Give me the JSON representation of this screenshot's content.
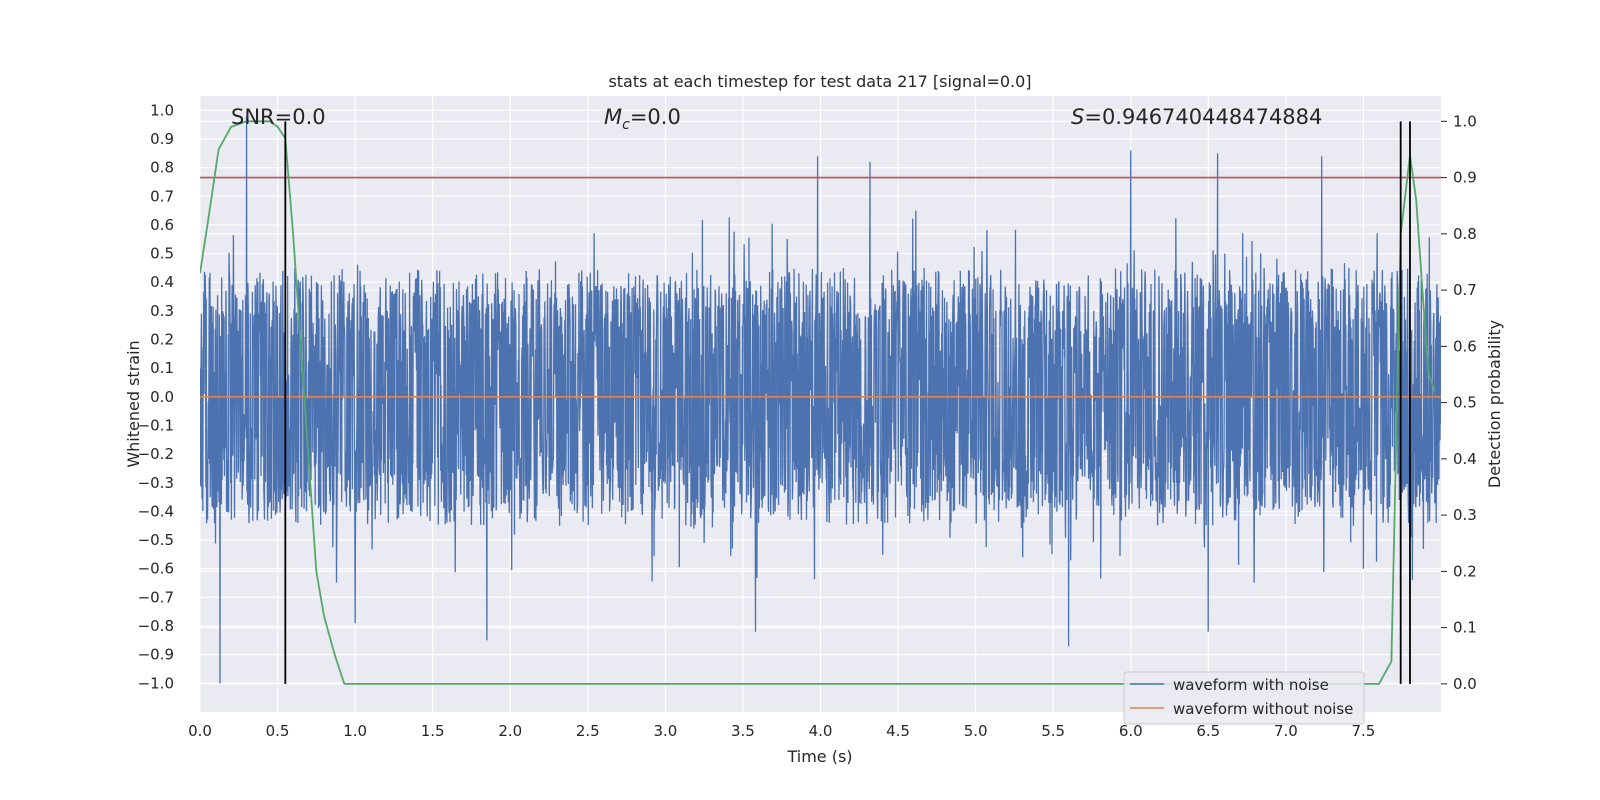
{
  "chart_data": {
    "type": "line",
    "title": "stats at each timestep for test data 217 [signal=0.0]",
    "xlabel": "Time (s)",
    "ylabel": "Whitened strain",
    "y2label": "Detection probability",
    "xlim": [
      0.0,
      8.0
    ],
    "ylim": [
      -1.1,
      1.05
    ],
    "y2lim": [
      -0.05,
      1.045
    ],
    "x_ticks": [
      0.0,
      0.5,
      1.0,
      1.5,
      2.0,
      2.5,
      3.0,
      3.5,
      4.0,
      4.5,
      5.0,
      5.5,
      6.0,
      6.5,
      7.0,
      7.5
    ],
    "x_tick_labels": [
      "0.0",
      "0.5",
      "1.0",
      "1.5",
      "2.0",
      "2.5",
      "3.0",
      "3.5",
      "4.0",
      "4.5",
      "5.0",
      "5.5",
      "6.0",
      "6.5",
      "7.0",
      "7.5"
    ],
    "y_ticks": [
      1.0,
      0.9,
      0.8,
      0.7,
      0.6,
      0.5,
      0.4,
      0.3,
      0.2,
      0.1,
      0.0,
      -0.1,
      -0.2,
      -0.3,
      -0.4,
      -0.5,
      -0.6,
      -0.7,
      -0.8,
      -0.9,
      -1.0
    ],
    "y_tick_labels": [
      "1.0",
      "0.9",
      "0.8",
      "0.7",
      "0.6",
      "0.5",
      "0.4",
      "0.3",
      "0.2",
      "0.1",
      "0.0",
      "−0.1",
      "−0.2",
      "−0.3",
      "−0.4",
      "−0.5",
      "−0.6",
      "−0.7",
      "−0.8",
      "−0.9",
      "−1.0"
    ],
    "y2_ticks": [
      1.0,
      0.9,
      0.8,
      0.7,
      0.6,
      0.5,
      0.4,
      0.3,
      0.2,
      0.1,
      0.0
    ],
    "y2_tick_labels": [
      "1.0",
      "0.9",
      "0.8",
      "0.7",
      "0.6",
      "0.5",
      "0.4",
      "0.3",
      "0.2",
      "0.1",
      "0.0"
    ],
    "grid": true,
    "series": [
      {
        "name": "waveform with noise",
        "color": "#4c72b0",
        "kind": "noise",
        "axis": "left",
        "typical_range": [
          -0.45,
          0.45
        ],
        "peaks": [
          {
            "x": 0.3,
            "y": 0.98
          },
          {
            "x": 3.98,
            "y": 0.84
          },
          {
            "x": 4.32,
            "y": 0.82
          },
          {
            "x": 6.0,
            "y": 0.86
          },
          {
            "x": 6.56,
            "y": 0.85
          },
          {
            "x": 7.23,
            "y": 0.84
          },
          {
            "x": 0.13,
            "y": -1.0
          },
          {
            "x": 1.0,
            "y": -0.79
          },
          {
            "x": 1.85,
            "y": -0.85
          },
          {
            "x": 3.58,
            "y": -0.82
          },
          {
            "x": 5.6,
            "y": -0.87
          },
          {
            "x": 6.5,
            "y": -0.82
          },
          {
            "x": 7.5,
            "y": -0.6
          }
        ]
      },
      {
        "name": "waveform without noise",
        "color": "#dd8452",
        "axis": "left",
        "x": [
          0.0,
          8.0
        ],
        "y": [
          0.0,
          0.0
        ]
      },
      {
        "name": "detection probability",
        "color": "#55a868",
        "axis": "right",
        "x": [
          0.0,
          0.05,
          0.12,
          0.2,
          0.3,
          0.45,
          0.5,
          0.55,
          0.6,
          0.65,
          0.7,
          0.75,
          0.8,
          0.87,
          0.93,
          1.0,
          2.0,
          3.0,
          3.4,
          3.6,
          4.0,
          5.0,
          6.0,
          7.0,
          7.5,
          7.6,
          7.68,
          7.74,
          7.8,
          7.84,
          7.88,
          7.92,
          7.96
        ],
        "y": [
          0.73,
          0.82,
          0.95,
          0.99,
          1.0,
          1.0,
          0.99,
          0.97,
          0.8,
          0.6,
          0.4,
          0.2,
          0.12,
          0.05,
          0.0,
          0.0,
          0.0,
          0.0,
          0.0,
          0.0,
          0.0,
          0.0,
          0.0,
          0.0,
          0.0,
          0.0,
          0.04,
          0.8,
          0.94,
          0.86,
          0.7,
          0.55,
          0.52
        ]
      }
    ],
    "hlines": [
      {
        "axis": "right",
        "y": 0.9,
        "color": "#c44e52"
      }
    ],
    "vlines": [
      {
        "x": 0.55,
        "color": "#000000"
      },
      {
        "x": 7.74,
        "color": "#000000"
      },
      {
        "x": 7.8,
        "color": "#000000"
      }
    ],
    "annotations": {
      "snr": "SNR=0.0",
      "mc_symbol": "M",
      "mc_subscript": "c",
      "mc_value": "=0.0",
      "s_symbol": "S",
      "s_value": "=0.946740448474884"
    },
    "legend": {
      "position": "bottom-right",
      "entries": [
        {
          "label": "waveform with noise",
          "color": "#4c72b0"
        },
        {
          "label": "waveform without noise",
          "color": "#dd8452"
        }
      ]
    }
  }
}
